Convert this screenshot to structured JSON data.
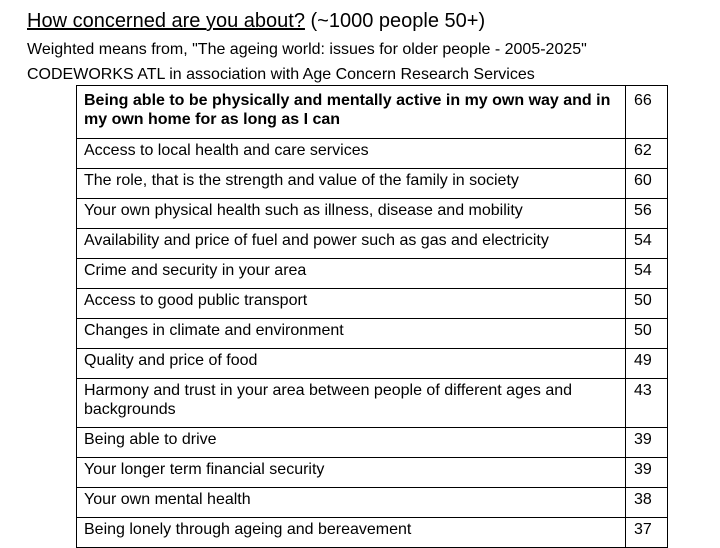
{
  "header": {
    "title_question": "How concerned are you about?",
    "title_sample": " (~1000 people 50+)",
    "subtitle": "Weighted means from, \"The ageing world: issues for older people - 2005-2025\"",
    "source": "CODEWORKS ATL in association with Age Concern Research Services"
  },
  "table": {
    "rows": [
      {
        "label": "Being able to be physically and mentally active in my own way and in my own home for as long as I can",
        "value": "66"
      },
      {
        "label": "Access to local health and care services",
        "value": "62"
      },
      {
        "label": "The role, that is the strength and value of the family in society",
        "value": "60"
      },
      {
        "label": "Your own physical health such as illness, disease and mobility",
        "value": "56"
      },
      {
        "label": "Availability and price of fuel and power such as gas and electricity",
        "value": "54"
      },
      {
        "label": "Crime and security in your area",
        "value": "54"
      },
      {
        "label": "Access to good public transport",
        "value": "50"
      },
      {
        "label": "Changes in climate and environment",
        "value": "50"
      },
      {
        "label": "Quality and price of food",
        "value": "49"
      },
      {
        "label": "Harmony and trust in your area between people of different ages and backgrounds",
        "value": "43"
      },
      {
        "label": "Being able to drive",
        "value": "39"
      },
      {
        "label": "Your longer term financial security",
        "value": "39"
      },
      {
        "label": "Your own mental health",
        "value": "38"
      },
      {
        "label": "Being lonely through ageing and bereavement",
        "value": "37"
      }
    ]
  }
}
